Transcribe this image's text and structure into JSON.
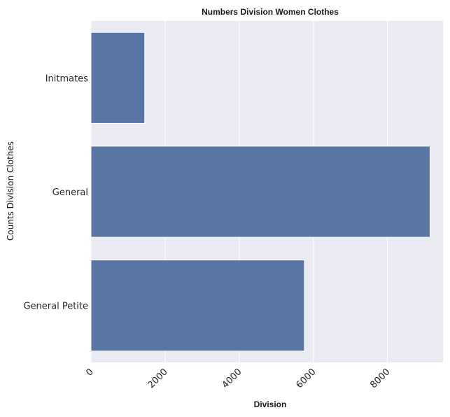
{
  "chart_data": {
    "type": "bar",
    "orientation": "horizontal",
    "title": "Numbers Division Women Clothes",
    "xlabel": "Division",
    "ylabel": "Counts Division Clothes",
    "categories": [
      "Initmates",
      "General",
      "General Petite"
    ],
    "values": [
      1450,
      9150,
      5760
    ],
    "xlim": [
      0,
      9500
    ],
    "xticks": [
      0,
      2000,
      4000,
      6000,
      8000
    ],
    "grid": true,
    "bar_color": "#5975a4",
    "background_color": "#eaeaf2"
  }
}
